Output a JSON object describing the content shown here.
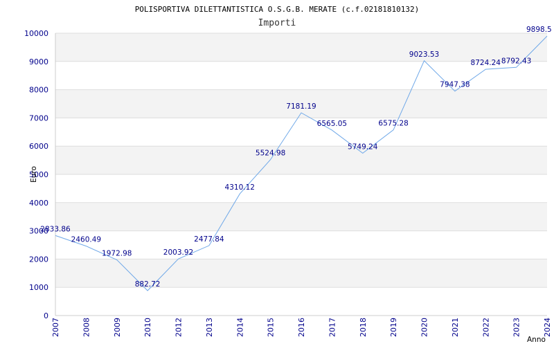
{
  "chart_data": {
    "type": "line",
    "title": "POLISPORTIVA DILETTANTISTICA O.S.G.B. MERATE (c.f.02181810132)",
    "subtitle": "Importi",
    "xlabel": "Anno",
    "ylabel": "Euro",
    "x": [
      "2007",
      "2008",
      "2009",
      "2010",
      "2012",
      "2013",
      "2014",
      "2015",
      "2016",
      "2017",
      "2018",
      "2019",
      "2020",
      "2021",
      "2022",
      "2023",
      "2024"
    ],
    "values": [
      2833.86,
      2460.49,
      1972.98,
      882.72,
      2003.92,
      2477.84,
      4310.12,
      5524.98,
      7181.19,
      6565.05,
      5749.24,
      6575.28,
      9023.53,
      7947.38,
      8724.24,
      8792.43,
      9898.5
    ],
    "labels": [
      "2833.86",
      "2460.49",
      "1972.98",
      "882.72",
      "2003.92",
      "2477.84",
      "4310.12",
      "5524.98",
      "7181.19",
      "6565.05",
      "5749.24",
      "6575.28",
      "9023.53",
      "7947.38",
      "8724.24",
      "8792.43",
      "9898.5"
    ],
    "ylim": [
      0,
      10000
    ],
    "yticks": [
      "0",
      "1000",
      "2000",
      "3000",
      "4000",
      "5000",
      "6000",
      "7000",
      "8000",
      "9000",
      "10000"
    ],
    "grid": "horizontal",
    "legend": "none",
    "colors": {
      "line": "#6fa8e8",
      "band": "#f3f3f3",
      "grid": "#dddddd",
      "tick_text": "#00008b"
    }
  }
}
